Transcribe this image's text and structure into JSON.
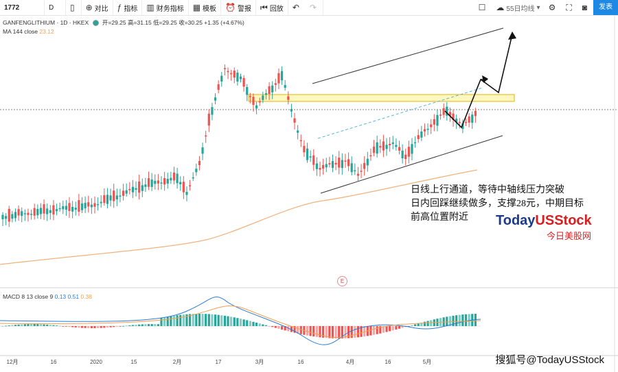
{
  "toolbar": {
    "symbol": "1772",
    "interval": "D",
    "compare_label": "对比",
    "indicators_label": "指标",
    "financials_label": "财务指标",
    "templates_label": "模板",
    "alert_label": "警报",
    "replay_label": "回放",
    "ma_select_label": "55日均线",
    "publish_label": "发表"
  },
  "legend": {
    "title": "GANFENGLITHIUM · 1D · HKEX",
    "ohlc": "开=29.25 高=31.15 低=29.25 收=30.25 +1.35 (+4.67%)",
    "ma_label": "MA 144 close",
    "ma_value": "23.12",
    "macd_label": "MACD 8 13 close 9",
    "macd_v1": "0.13",
    "macd_v2": "0.51",
    "macd_v3": "0.38"
  },
  "annotation": {
    "line1": "日线上行通道，等待中轴线压力突破",
    "line2": "日内回踩继续做多，支撑28元，中期目标",
    "line3": "前高位置附近"
  },
  "brand": {
    "name_a": "Today",
    "name_b": "USStock",
    "sub": "今日美股网"
  },
  "watermark": "搜狐号@TodayUSStock",
  "e_label": "E",
  "x_axis": [
    "12月",
    "16",
    "2020",
    "15",
    "2月",
    "17",
    "3月",
    "16",
    "4月",
    "16",
    "5月"
  ],
  "colors": {
    "up": "#26a69a",
    "down": "#ef5350",
    "ma": "#f0b37e",
    "channel": "#333333",
    "midline": "#4fb3d9",
    "resistance_fill": "#fff7c2",
    "resistance_border": "#e0b400",
    "macd_line": "#2a7bd5",
    "signal_line": "#f0a050"
  }
}
